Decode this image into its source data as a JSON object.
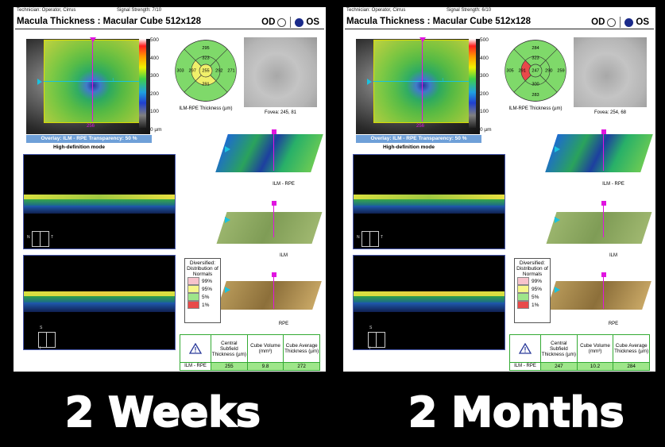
{
  "reports": [
    {
      "technician": "Technician:  Operator, Cirrus",
      "signal": "Signal Strength:   7/10",
      "title": "Macula Thickness : Macular Cube 512x128",
      "od_label": "OD",
      "os_label": "OS",
      "selected_eye": "OS",
      "map_marker_label": "256",
      "map_side_label": "1",
      "colorbar_ticks": [
        "500",
        "400",
        "300",
        "200",
        "100",
        "0 µm"
      ],
      "overlay": "Overlay: ILM - RPE  Transparency: 50 %",
      "mode": "High-definition mode",
      "etdrs": {
        "outer_top": "295",
        "inner_top": "323",
        "outer_left": "303",
        "inner_left": "297",
        "center": "255",
        "inner_right": "292",
        "outer_right": "271",
        "inner_bottom": "291",
        "outer_bottom": "",
        "caption": "ILM-RPE Thickness (µm)"
      },
      "etdrs_colors": {
        "center": "#f0f06a",
        "inner_top": "#7fd96a",
        "inner_left": "#f0f06a",
        "inner_right": "#7fd96a",
        "inner_bottom": "#f0f06a",
        "outer": "#7fd96a"
      },
      "fovea_label": "Fovea: 245, 81",
      "surfaces": [
        "ILM - RPE",
        "ILM",
        "RPE"
      ],
      "legend_title": "Diversified: Distribution of Normals",
      "legend": [
        {
          "label": "99%",
          "color": "#f7c3cc"
        },
        {
          "label": "95%",
          "color": "#f6f68a"
        },
        {
          "label": "5%",
          "color": "#9ee68a"
        },
        {
          "label": "1%",
          "color": "#e84a4a"
        }
      ],
      "table": {
        "headers": [
          "Central Subfield Thickness (µm)",
          "Cube Volume (mm³)",
          "Cube Average Thickness (µm)"
        ],
        "row_label": "ILM - RPE",
        "values": [
          "255",
          "9.8",
          "272"
        ]
      }
    },
    {
      "technician": "Technician:  Operator, Cirrus",
      "signal": "Signal Strength:   6/10",
      "title": "Macula Thickness : Macular Cube 512x128",
      "od_label": "OD",
      "os_label": "OS",
      "selected_eye": "OS",
      "map_marker_label": "256",
      "map_side_label": "1",
      "colorbar_ticks": [
        "500",
        "400",
        "300",
        "200",
        "100",
        "0 µm"
      ],
      "overlay": "Overlay: ILM - RPE  Transparency: 50 %",
      "mode": "High-definition mode",
      "etdrs": {
        "outer_top": "284",
        "inner_top": "323",
        "outer_left": "305",
        "inner_left": "291",
        "center": "247",
        "inner_right": "290",
        "outer_right": "259",
        "inner_bottom": "300",
        "outer_bottom": "283",
        "caption": "ILM-RPE Thickness (µm)"
      },
      "etdrs_colors": {
        "center": "#7fd96a",
        "inner_top": "#7fd96a",
        "inner_left": "#e84a4a",
        "inner_right": "#7fd96a",
        "inner_bottom": "#7fd96a",
        "outer": "#7fd96a"
      },
      "fovea_label": "Fovea: 254, 68",
      "surfaces": [
        "ILM - RPE",
        "ILM",
        "RPE"
      ],
      "legend_title": "Diversified: Distribution of Normals",
      "legend": [
        {
          "label": "99%",
          "color": "#f7c3cc"
        },
        {
          "label": "95%",
          "color": "#f6f68a"
        },
        {
          "label": "5%",
          "color": "#9ee68a"
        },
        {
          "label": "1%",
          "color": "#e84a4a"
        }
      ],
      "table": {
        "headers": [
          "Central Subfield Thickness (µm)",
          "Cube Volume (mm³)",
          "Cube Average Thickness (µm)"
        ],
        "row_label": "ILM - RPE",
        "values": [
          "247",
          "10.2",
          "284"
        ]
      }
    }
  ],
  "captions": [
    "2 Weeks",
    "2 Months"
  ]
}
